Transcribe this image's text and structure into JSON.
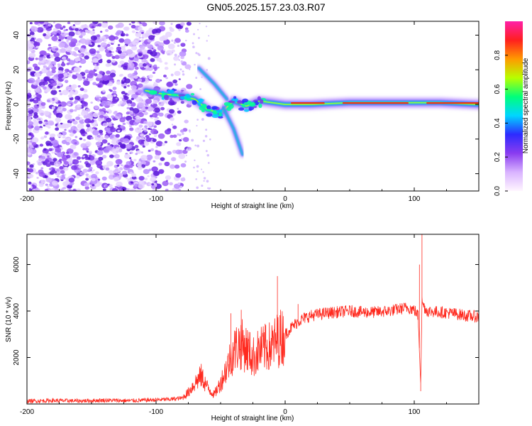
{
  "title": "GN05.2025.157.23.03.R07",
  "colors": {
    "snr_line": "#ff2a1f",
    "spectral_core": "#ff2000",
    "spectral_noise": "#7a3bf0",
    "colorbar": [
      "#fff6ff",
      "#d9b3ff",
      "#8a3cf0",
      "#2d2bff",
      "#00d6ff",
      "#00ff7a",
      "#b8ff00",
      "#ff9a00",
      "#ff1f1f",
      "#ff1fa8"
    ]
  },
  "chart_data": [
    {
      "id": "spectrogram",
      "type": "heatmap",
      "xlabel": "Height of straight line (km)",
      "ylabel": "Frequency (Hz)",
      "xlim": [
        -200,
        150
      ],
      "ylim": [
        -50,
        48
      ],
      "x_ticks": [
        -200,
        -100,
        0,
        100
      ],
      "x_tick_labels": [
        "-200",
        "-100",
        "0",
        "100"
      ],
      "y_ticks": [
        -40,
        -20,
        0,
        20,
        40
      ],
      "y_tick_labels": [
        "-40",
        "-20",
        "0",
        "20",
        "40"
      ],
      "colorbar": {
        "label": "Normalized spectral amplitude",
        "range": [
          0,
          1
        ],
        "ticks": [
          0.0,
          0.2,
          0.4,
          0.6,
          0.8
        ],
        "tick_labels": [
          "0.0",
          "0.2",
          "0.4",
          "0.6",
          "0.8"
        ]
      },
      "features": {
        "noise_region_x": [
          -200,
          -82
        ],
        "carrier_track": [
          [
            -108,
            8
          ],
          [
            -95,
            6
          ],
          [
            -80,
            5
          ],
          [
            -70,
            3
          ],
          [
            -60,
            -3
          ],
          [
            -50,
            -5
          ],
          [
            -40,
            2
          ],
          [
            -30,
            -1
          ],
          [
            -20,
            2
          ],
          [
            -10,
            1
          ],
          [
            0,
            0
          ],
          [
            20,
            0
          ],
          [
            50,
            1
          ],
          [
            80,
            1
          ],
          [
            100,
            1
          ],
          [
            120,
            1
          ],
          [
            150,
            0
          ]
        ],
        "branch_upper": [
          [
            -67,
            21
          ],
          [
            -55,
            12
          ],
          [
            -45,
            3
          ]
        ],
        "branch_lower": [
          [
            -48,
            -2
          ],
          [
            -40,
            -14
          ],
          [
            -33,
            -29
          ]
        ]
      }
    },
    {
      "id": "snr",
      "type": "line",
      "xlabel": "Height of straight line (km)",
      "ylabel": "SNR (10 * v/v)",
      "xlim": [
        -200,
        150
      ],
      "ylim": [
        0,
        7300
      ],
      "x_ticks": [
        -200,
        -100,
        0,
        100
      ],
      "x_tick_labels": [
        "-200",
        "-100",
        "0",
        "100"
      ],
      "y_ticks": [
        2000,
        4000,
        6000
      ],
      "y_tick_labels": [
        "2000",
        "4000",
        "6000"
      ],
      "series": [
        {
          "x": [
            -200,
            -180,
            -160,
            -140,
            -120,
            -100,
            -90,
            -80,
            -75,
            -70,
            -65,
            -60,
            -55,
            -50,
            -45,
            -40,
            -35,
            -30,
            -25,
            -20,
            -15,
            -10,
            -5,
            0,
            5,
            10,
            15,
            20,
            30,
            40,
            50,
            60,
            70,
            80,
            90,
            95,
            100,
            103,
            105,
            106,
            108,
            110,
            120,
            130,
            140,
            150
          ],
          "y": [
            120,
            150,
            130,
            160,
            140,
            180,
            200,
            250,
            500,
            900,
            1200,
            700,
            400,
            900,
            1600,
            2300,
            2600,
            2400,
            2000,
            2300,
            2400,
            2500,
            2800,
            3000,
            3300,
            3550,
            3700,
            3800,
            3900,
            3950,
            4000,
            3950,
            3950,
            4000,
            4100,
            4150,
            4050,
            3800,
            1000,
            4400,
            4150,
            4000,
            3950,
            3900,
            3800,
            3750
          ]
        }
      ],
      "spikes": [
        [
          -42,
          3900
        ],
        [
          -34,
          4050
        ],
        [
          -28,
          3100
        ],
        [
          -15,
          3400
        ],
        [
          -6,
          5500
        ],
        [
          10,
          4300
        ],
        [
          104,
          6000
        ],
        [
          106,
          7300
        ],
        [
          105,
          550
        ]
      ]
    }
  ]
}
